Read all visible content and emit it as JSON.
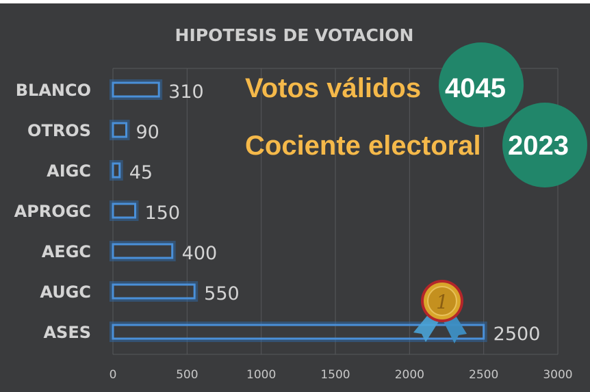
{
  "chart_data": {
    "type": "bar",
    "orientation": "horizontal",
    "title": "HIPOTESIS DE VOTACION",
    "categories": [
      "BLANCO",
      "OTROS",
      "AIGC",
      "APROGC",
      "AEGC",
      "AUGC",
      "ASES"
    ],
    "values": [
      310,
      90,
      45,
      150,
      400,
      550,
      2500
    ],
    "x_ticks": [
      "0",
      "500",
      "1000",
      "1500",
      "2000",
      "2500",
      "3000"
    ],
    "xlim": [
      0,
      3000
    ],
    "grid": true,
    "legend": "none"
  },
  "annotations": {
    "valid_votes_label": "Votos válidos",
    "valid_votes_value": "4045",
    "quotient_label": "Cociente electoral",
    "quotient_value": "2023"
  },
  "colors": {
    "background": "#3a3b3d",
    "bar_outline": "#4a90d9",
    "accent_text": "#f5b94a",
    "circle": "#21866a",
    "medal_gold": "#d9a62a",
    "medal_ribbon": "#4aa3d6"
  },
  "icons": {
    "medal": "gold-medal-icon"
  }
}
